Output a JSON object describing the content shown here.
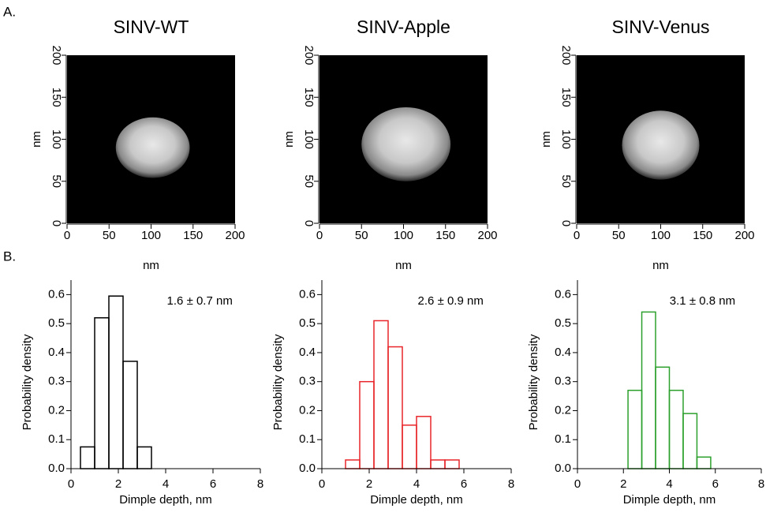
{
  "panel_labels": [
    "A.",
    "B."
  ],
  "chart_data": [
    {
      "type": "image",
      "title": "SINV-WT",
      "xlabel": "nm",
      "ylabel": "nm",
      "xlim": [
        0,
        200
      ],
      "ylim": [
        0,
        200
      ],
      "xticks": [
        0,
        50,
        100,
        150,
        200
      ],
      "yticks": [
        0,
        50,
        100,
        150,
        200
      ]
    },
    {
      "type": "image",
      "title": "SINV-Apple",
      "xlabel": "nm",
      "ylabel": "nm",
      "xlim": [
        0,
        200
      ],
      "ylim": [
        0,
        200
      ],
      "xticks": [
        0,
        50,
        100,
        150,
        200
      ],
      "yticks": [
        0,
        50,
        100,
        150,
        200
      ]
    },
    {
      "type": "image",
      "title": "SINV-Venus",
      "xlabel": "nm",
      "ylabel": "nm",
      "xlim": [
        0,
        200
      ],
      "ylim": [
        0,
        200
      ],
      "xticks": [
        0,
        50,
        100,
        150,
        200
      ],
      "yticks": [
        0,
        50,
        100,
        150,
        200
      ]
    },
    {
      "type": "histogram",
      "annotation": "1.6 ± 0.7 nm",
      "xlabel": "Dimple depth, nm",
      "ylabel": "Probability density",
      "color": "#000000",
      "bins": [
        0.4,
        1.0,
        1.6,
        2.2,
        2.8,
        3.4
      ],
      "values": [
        0.075,
        0.52,
        0.595,
        0.37,
        0.075
      ],
      "xlim": [
        0,
        8
      ],
      "ylim": [
        0,
        0.65
      ],
      "xticks": [
        0,
        2,
        4,
        6,
        8
      ],
      "yticks": [
        {
          "value": 0,
          "label": "0.0"
        },
        0.1,
        0.2,
        0.3,
        0.4,
        0.5,
        0.6
      ]
    },
    {
      "type": "histogram",
      "annotation": "2.6 ± 0.9 nm",
      "xlabel": "Dimple depth, nm",
      "ylabel": "Probability density",
      "color": "#e8262b",
      "bins": [
        1.0,
        1.6,
        2.2,
        2.8,
        3.4,
        4.0,
        4.6,
        5.2,
        5.8
      ],
      "values": [
        0.03,
        0.3,
        0.51,
        0.42,
        0.15,
        0.18,
        0.03,
        0.03
      ],
      "xlim": [
        0,
        8
      ],
      "ylim": [
        0,
        0.65
      ],
      "xticks": [
        0,
        2,
        4,
        6,
        8
      ],
      "yticks": [
        {
          "value": 0,
          "label": "0.0"
        },
        0.1,
        0.2,
        0.3,
        0.4,
        0.5,
        0.6
      ]
    },
    {
      "type": "histogram",
      "annotation": "3.1 ± 0.8 nm",
      "xlabel": "Dimple depth, nm",
      "ylabel": "Probability density",
      "color": "#2ca02c",
      "bins": [
        2.2,
        2.8,
        3.4,
        4.0,
        4.6,
        5.2,
        5.8
      ],
      "values": [
        0.27,
        0.54,
        0.35,
        0.27,
        0.19,
        0.04
      ],
      "xlim": [
        0,
        8
      ],
      "ylim": [
        0,
        0.65
      ],
      "xticks": [
        0,
        2,
        4,
        6,
        8
      ],
      "yticks": [
        {
          "value": 0,
          "label": "0.0"
        },
        0.1,
        0.2,
        0.3,
        0.4,
        0.5,
        0.6
      ]
    }
  ]
}
